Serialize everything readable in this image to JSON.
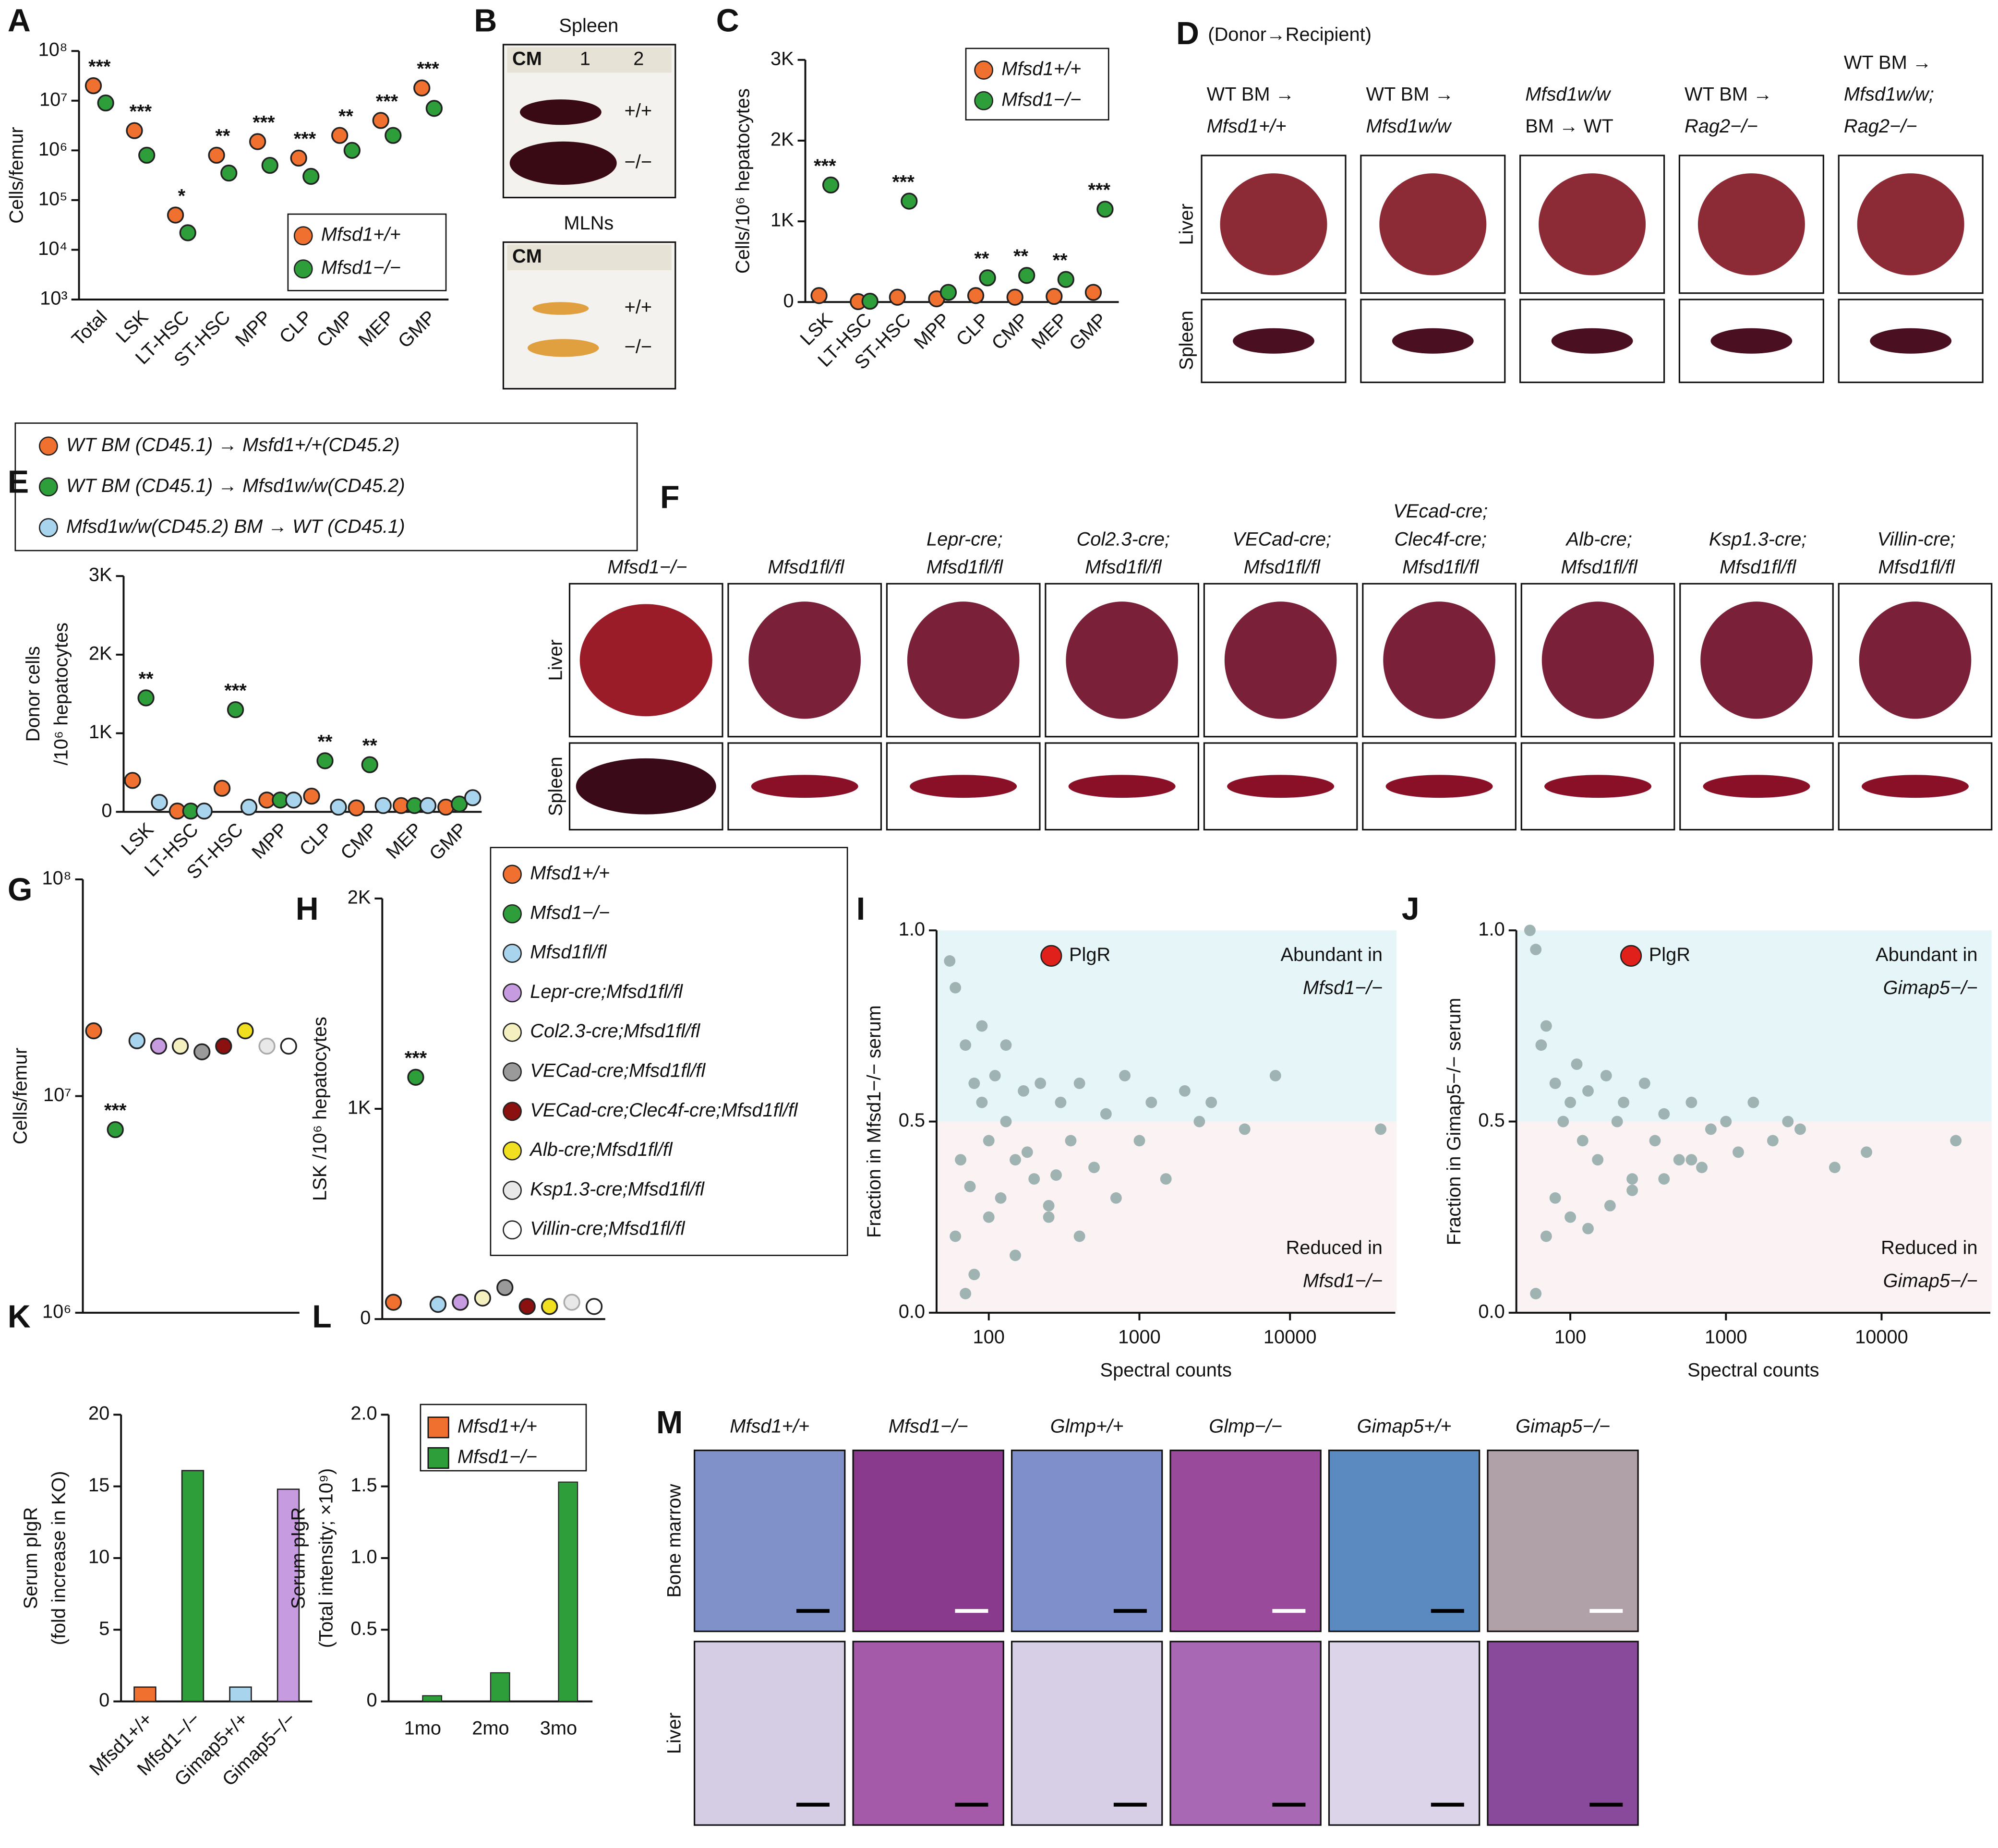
{
  "chart_data": [
    {
      "type": "dot",
      "panel": "A",
      "ylog": true,
      "ylabel": [
        "Cells/femur"
      ],
      "categories": [
        "Total",
        "LSK",
        "LT-HSC",
        "ST-HSC",
        "MPP",
        "CLP",
        "CMP",
        "MEP",
        "GMP"
      ],
      "series": [
        {
          "name": "Mfsd1+/+",
          "color": "#f07030",
          "values": [
            20000000,
            2500000,
            50000,
            800000,
            1500000,
            700000,
            2000000,
            4000000,
            18000000
          ]
        },
        {
          "name": "Mfsd1−/−",
          "color": "#2e9e3a",
          "values": [
            9000000,
            800000,
            22000,
            350000,
            500000,
            300000,
            1000000,
            2000000,
            7000000
          ]
        }
      ],
      "sig_labels": [
        "***",
        "***",
        "*",
        "**",
        "***",
        "***",
        "**",
        "***",
        "***"
      ],
      "ylim": [
        1000,
        100000000
      ],
      "yticks": [
        {
          "value": 1000,
          "label": "10³"
        },
        {
          "value": 10000,
          "label": "10⁴"
        },
        {
          "value": 100000,
          "label": "10⁵"
        },
        {
          "value": 1000000,
          "label": "10⁶"
        },
        {
          "value": 10000000,
          "label": "10⁷"
        },
        {
          "value": 100000000,
          "label": "10⁸"
        }
      ]
    },
    {
      "type": "dot",
      "panel": "C",
      "ylabel": [
        "Cells/10⁶ hepatocytes"
      ],
      "categories": [
        "LSK",
        "LT-HSC",
        "ST-HSC",
        "MPP",
        "CLP",
        "CMP",
        "MEP",
        "GMP"
      ],
      "series": [
        {
          "name": "Mfsd1+/+",
          "color": "#f07030",
          "values": [
            80,
            5,
            60,
            40,
            80,
            60,
            70,
            120
          ]
        },
        {
          "name": "Mfsd1−/−",
          "color": "#2e9e3a",
          "values": [
            1450,
            10,
            1250,
            120,
            300,
            330,
            280,
            1150
          ]
        }
      ],
      "sig_labels": [
        "***",
        null,
        "***",
        null,
        "**",
        "**",
        "**",
        "***"
      ],
      "ylim": [
        0,
        3000
      ],
      "yticks": [
        0,
        {
          "value": 1000,
          "label": "1K"
        },
        {
          "value": 2000,
          "label": "2K"
        },
        {
          "value": 3000,
          "label": "3K"
        }
      ]
    },
    {
      "type": "dot",
      "panel": "E",
      "ylabel": [
        "Donor cells",
        "/10⁶ hepatocytes"
      ],
      "categories": [
        "LSK",
        "LT-HSC",
        "ST-HSC",
        "MPP",
        "CLP",
        "CMP",
        "MEP",
        "GMP"
      ],
      "series": [
        {
          "name": "WT BM (CD45.1) → Msfd1+/+(CD45.2)",
          "color": "#f07030",
          "values": [
            400,
            10,
            300,
            150,
            200,
            50,
            80,
            60
          ]
        },
        {
          "name": "WT BM (CD45.1) → Mfsd1w/w(CD45.2)",
          "color": "#2e9e3a",
          "values": [
            1450,
            10,
            1300,
            150,
            650,
            600,
            80,
            100
          ]
        },
        {
          "name": "Mfsd1w/w(CD45.2) BM → WT (CD45.1)",
          "color": "#a8d4ee",
          "values": [
            120,
            10,
            60,
            150,
            60,
            80,
            80,
            180
          ]
        }
      ],
      "sig_labels": [
        "**",
        null,
        "***",
        null,
        "**",
        "**",
        null,
        null
      ],
      "ylim": [
        0,
        3000
      ],
      "yticks": [
        0,
        {
          "value": 1000,
          "label": "1K"
        },
        {
          "value": 2000,
          "label": "2K"
        },
        {
          "value": 3000,
          "label": "3K"
        }
      ]
    },
    {
      "type": "dot",
      "panel": "G",
      "ylog": true,
      "ylabel": [
        "Cells/femur"
      ],
      "series": [
        {
          "name": "Mfsd1+/+",
          "color": "#f07030",
          "values": [
            20000000
          ]
        },
        {
          "name": "Mfsd1−/−",
          "color": "#2e9e3a",
          "values": [
            7000000
          ]
        },
        {
          "name": "Mfsd1fl/fl",
          "color": "#a8d4ee",
          "values": [
            18000000
          ]
        },
        {
          "name": "Lepr-cre;Mfsd1fl/fl",
          "color": "#c79be0",
          "values": [
            17000000
          ]
        },
        {
          "name": "Col2.3-cre;Mfsd1fl/fl",
          "color": "#f5f0c0",
          "values": [
            17000000
          ]
        },
        {
          "name": "VECad-cre;Mfsd1fl/fl",
          "color": "#9a9a9a",
          "values": [
            16000000
          ]
        },
        {
          "name": "VECad-cre;Clec4f-cre;Mfsd1fl/fl",
          "color": "#8b1010",
          "values": [
            17000000
          ]
        },
        {
          "name": "Alb-cre;Mfsd1fl/fl",
          "color": "#f0e020",
          "values": [
            20000000
          ]
        },
        {
          "name": "Ksp1.3-cre;Mfsd1fl/fl",
          "color": "#e8e8e8",
          "values": [
            17000000
          ]
        },
        {
          "name": "Villin-cre;Mfsd1fl/fl",
          "color": "#ffffff",
          "values": [
            17000000
          ]
        }
      ],
      "sig_labels": [
        null,
        "***",
        null,
        null,
        null,
        null,
        null,
        null,
        null,
        null
      ],
      "ylim": [
        1000000,
        100000000
      ],
      "yticks": [
        {
          "value": 1000000,
          "label": "10⁶"
        },
        {
          "value": 10000000,
          "label": "10⁷"
        },
        {
          "value": 100000000,
          "label": "10⁸"
        }
      ]
    },
    {
      "type": "dot",
      "panel": "H",
      "ylabel": [
        "LSK /10⁶ hepatocytes"
      ],
      "series": [
        {
          "color": "#f07030",
          "values": [
            80
          ]
        },
        {
          "color": "#2e9e3a",
          "values": [
            1150
          ]
        },
        {
          "color": "#a8d4ee",
          "values": [
            70
          ]
        },
        {
          "color": "#c79be0",
          "values": [
            80
          ]
        },
        {
          "color": "#f5f0c0",
          "values": [
            100
          ]
        },
        {
          "color": "#9a9a9a",
          "values": [
            150
          ]
        },
        {
          "color": "#8b1010",
          "values": [
            60
          ]
        },
        {
          "color": "#f0e020",
          "values": [
            60
          ]
        },
        {
          "color": "#e8e8e8",
          "values": [
            80
          ]
        },
        {
          "color": "#ffffff",
          "values": [
            60
          ]
        }
      ],
      "sig_labels": [
        null,
        "***",
        null,
        null,
        null,
        null,
        null,
        null,
        null,
        null
      ],
      "ylim": [
        0,
        2000
      ],
      "yticks": [
        0,
        {
          "value": 1000,
          "label": "1K"
        },
        {
          "value": 2000,
          "label": "2K"
        }
      ]
    },
    {
      "type": "scatter",
      "panel": "I",
      "xlog": true,
      "xlabel": "Spectral counts",
      "ylabel": [
        "Fraction in Mfsd1−/− serum"
      ],
      "annotations": [
        "Abundant in",
        "Mfsd1−/−",
        "Reduced in",
        "Mfsd1−/−"
      ],
      "highlight": {
        "name": "PlgR",
        "color": "#e0201b"
      },
      "series": [
        {
          "color": "#9fb3b3",
          "x": [
            55,
            60,
            70,
            80,
            90,
            100,
            110,
            120,
            130,
            150,
            170,
            200,
            220,
            250,
            300,
            350,
            400,
            500,
            600,
            700,
            800,
            1000,
            1200,
            1500,
            2000,
            2500,
            3000,
            5000,
            8000,
            40000,
            60,
            80,
            100,
            70,
            150,
            90,
            130,
            250,
            400,
            65,
            75,
            180,
            280
          ],
          "values": [
            0.92,
            0.85,
            0.7,
            0.6,
            0.55,
            0.45,
            0.62,
            0.3,
            0.5,
            0.4,
            0.58,
            0.35,
            0.6,
            0.28,
            0.55,
            0.45,
            0.6,
            0.38,
            0.52,
            0.3,
            0.62,
            0.45,
            0.55,
            0.35,
            0.58,
            0.5,
            0.55,
            0.48,
            0.62,
            0.48,
            0.2,
            0.1,
            0.25,
            0.05,
            0.15,
            0.75,
            0.7,
            0.25,
            0.2,
            0.4,
            0.33,
            0.42,
            0.36
          ]
        }
      ],
      "xlim": [
        45,
        50000
      ],
      "xticks": [
        100,
        1000,
        10000
      ],
      "ylim": [
        0,
        1
      ],
      "yticks": [
        {
          "value": 0,
          "label": "0.0"
        },
        {
          "value": 0.5,
          "label": "0.5"
        },
        {
          "value": 1,
          "label": "1.0"
        }
      ]
    },
    {
      "type": "scatter",
      "panel": "J",
      "xlog": true,
      "xlabel": "Spectral counts",
      "ylabel": [
        "Fraction in Gimap5−/− serum"
      ],
      "annotations": [
        "Abundant in",
        "Gimap5−/−",
        "Reduced in",
        "Gimap5−/−"
      ],
      "highlight": {
        "name": "PlgR",
        "color": "#e0201b"
      },
      "series": [
        {
          "color": "#9fb3b3",
          "x": [
            55,
            60,
            65,
            70,
            80,
            90,
            100,
            110,
            120,
            130,
            150,
            170,
            200,
            220,
            250,
            300,
            350,
            400,
            500,
            600,
            700,
            800,
            1000,
            1200,
            1500,
            2000,
            2500,
            3000,
            5000,
            8000,
            30000,
            60,
            70,
            80,
            100,
            130,
            180,
            250,
            400,
            600
          ],
          "values": [
            1.0,
            0.95,
            0.7,
            0.75,
            0.6,
            0.5,
            0.55,
            0.65,
            0.45,
            0.58,
            0.4,
            0.62,
            0.5,
            0.55,
            0.35,
            0.6,
            0.45,
            0.52,
            0.4,
            0.55,
            0.38,
            0.48,
            0.5,
            0.42,
            0.55,
            0.45,
            0.5,
            0.48,
            0.38,
            0.42,
            0.45,
            0.05,
            0.2,
            0.3,
            0.25,
            0.22,
            0.28,
            0.32,
            0.35,
            0.4
          ]
        }
      ],
      "xlim": [
        45,
        50000
      ],
      "xticks": [
        100,
        1000,
        10000
      ],
      "ylim": [
        0,
        1
      ],
      "yticks": [
        {
          "value": 0,
          "label": "0.0"
        },
        {
          "value": 0.5,
          "label": "0.5"
        },
        {
          "value": 1,
          "label": "1.0"
        }
      ]
    },
    {
      "type": "bar",
      "panel": "K",
      "ylabel": [
        "Serum pIgR",
        "(fold increase in KO)"
      ],
      "categories": [
        "Mfsd1+/+",
        "Mfsd1−/−",
        "Gimap5+/+",
        "Gimap5−/−"
      ],
      "values": [
        1,
        16.1,
        1,
        14.8
      ],
      "colors": [
        "#f07030",
        "#2e9e3a",
        "#a8d4ee",
        "#c79be0"
      ],
      "ylim": [
        0,
        20
      ],
      "yticks": [
        0,
        5,
        10,
        15,
        20
      ]
    },
    {
      "type": "bar",
      "panel": "L",
      "ylabel": [
        "Serum pIgR",
        "(Total intensity; ×10⁹)"
      ],
      "categories": [
        "1mo",
        "2mo",
        "3mo"
      ],
      "series": [
        {
          "name": "Mfsd1+/+",
          "color": "#f07030",
          "values": [
            0,
            0,
            0
          ]
        },
        {
          "name": "Mfsd1−/−",
          "color": "#2e9e3a",
          "values": [
            0.04,
            0.2,
            1.53
          ]
        }
      ],
      "ylim": [
        0,
        2
      ],
      "yticks": [
        0,
        0.5,
        {
          "value": 1,
          "label": "1.0"
        },
        1.5,
        {
          "value": 2,
          "label": "2.0"
        }
      ]
    }
  ],
  "figure": {
    "B": {
      "panel": "B",
      "headings": [
        "Spleen",
        "MLNs"
      ],
      "genotypes": [
        "+/+",
        "−/−",
        "+/+",
        "−/−"
      ],
      "ruler": [
        "CM",
        "1",
        "2"
      ]
    },
    "D": {
      "panel": "D",
      "title": "(Donor→Recipient)",
      "columns": [
        [
          "WT BM →",
          "Mfsd1+/+"
        ],
        [
          "WT BM →",
          "Mfsd1w/w"
        ],
        [
          "Mfsd1w/w",
          "BM → WT"
        ],
        [
          "WT BM →",
          "Rag2−/−"
        ],
        [
          "WT BM →",
          "Mfsd1w/w;",
          "Rag2−/−"
        ]
      ],
      "rows": [
        "Liver",
        "Spleen"
      ]
    },
    "F": {
      "panel": "F",
      "columns": [
        [
          "Mfsd1−/−"
        ],
        [
          "Mfsd1fl/fl"
        ],
        [
          "Lepr-cre;",
          "Mfsd1fl/fl"
        ],
        [
          "Col2.3-cre;",
          "Mfsd1fl/fl"
        ],
        [
          "VECad-cre;",
          "Mfsd1fl/fl"
        ],
        [
          "VEcad-cre;",
          "Clec4f-cre;",
          "Mfsd1fl/fl"
        ],
        [
          "Alb-cre;",
          "Mfsd1fl/fl"
        ],
        [
          "Ksp1.3-cre;",
          "Mfsd1fl/fl"
        ],
        [
          "Villin-cre;",
          "Mfsd1fl/fl"
        ]
      ],
      "rows": [
        "Liver",
        "Spleen"
      ]
    },
    "M": {
      "panel": "M",
      "columns": [
        "Mfsd1+/+",
        "Mfsd1−/−",
        "Glmp+/+",
        "Glmp−/−",
        "Gimap5+/+",
        "Gimap5−/−"
      ],
      "rows": [
        "Bone marrow",
        "Liver"
      ]
    }
  }
}
